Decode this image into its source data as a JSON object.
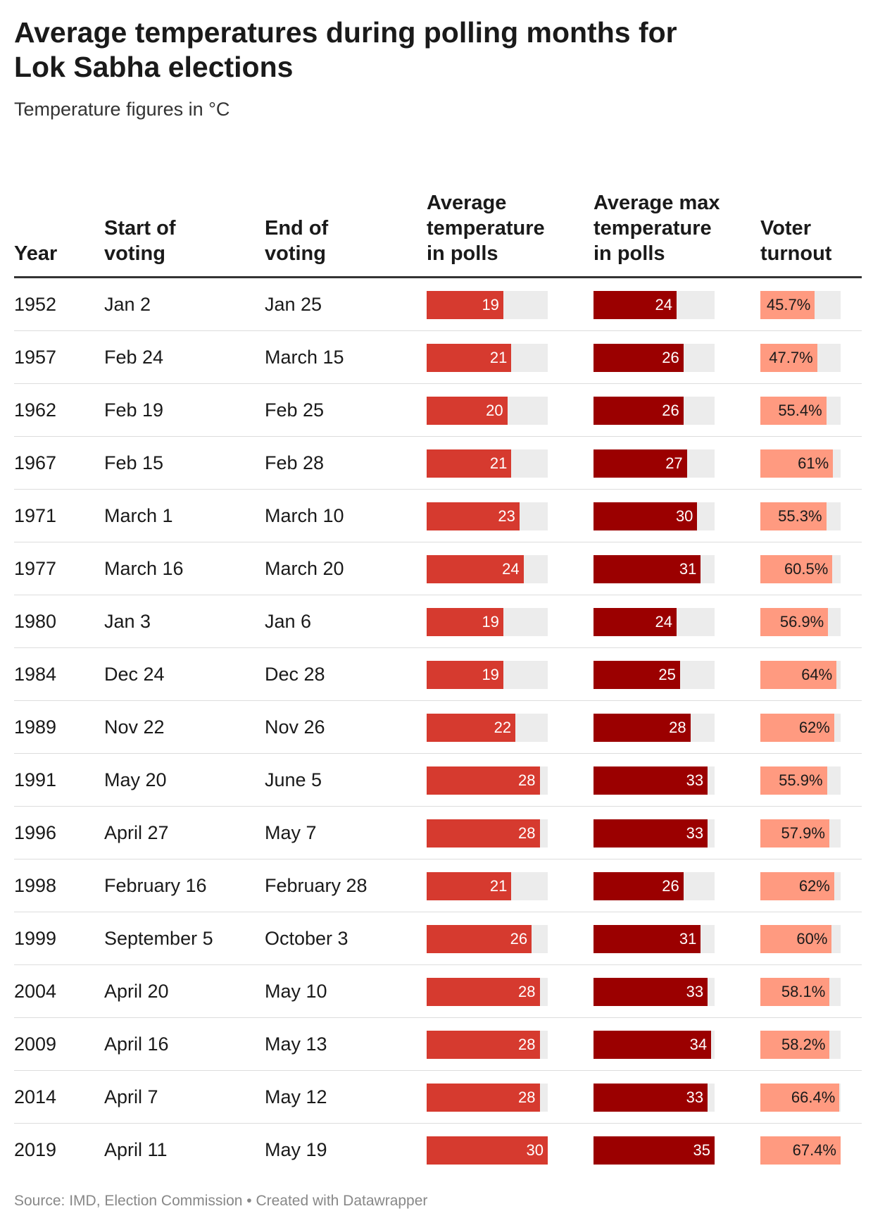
{
  "title": "Average temperatures during polling months for Lok Sabha elections",
  "subtitle": "Temperature figures in °C",
  "headers": {
    "year": "Year",
    "start": "Start of voting",
    "end": "End of voting",
    "avg_temp": "Average temperature in polls",
    "avg_max_temp": "Average max temperature in polls",
    "turnout": "Voter turnout"
  },
  "source": "Source: IMD, Election Commission • Created with Datawrapper",
  "colors": {
    "avg_temp_bar": "#d63a2f",
    "avg_max_temp_bar": "#9b0000",
    "turnout_bar": "#ff9a80",
    "track": "#ececec"
  },
  "chart_data": {
    "type": "table",
    "scales": {
      "avg_temp_max": 30,
      "avg_max_temp_max": 35,
      "turnout_max": 67.4
    },
    "columns": [
      "Year",
      "Start of voting",
      "End of voting",
      "Average temperature in polls",
      "Average max temperature in polls",
      "Voter turnout"
    ],
    "rows": [
      {
        "year": "1952",
        "start": "Jan 2",
        "end": "Jan 25",
        "avg_temp": 19,
        "avg_max_temp": 24,
        "turnout": 45.7,
        "turnout_label": "45.7%"
      },
      {
        "year": "1957",
        "start": "Feb 24",
        "end": "March 15",
        "avg_temp": 21,
        "avg_max_temp": 26,
        "turnout": 47.7,
        "turnout_label": "47.7%"
      },
      {
        "year": "1962",
        "start": "Feb 19",
        "end": "Feb 25",
        "avg_temp": 20,
        "avg_max_temp": 26,
        "turnout": 55.4,
        "turnout_label": "55.4%"
      },
      {
        "year": "1967",
        "start": "Feb 15",
        "end": "Feb 28",
        "avg_temp": 21,
        "avg_max_temp": 27,
        "turnout": 61,
        "turnout_label": "61%"
      },
      {
        "year": "1971",
        "start": "March 1",
        "end": "March 10",
        "avg_temp": 23,
        "avg_max_temp": 30,
        "turnout": 55.3,
        "turnout_label": "55.3%"
      },
      {
        "year": "1977",
        "start": "March 16",
        "end": "March 20",
        "avg_temp": 24,
        "avg_max_temp": 31,
        "turnout": 60.5,
        "turnout_label": "60.5%"
      },
      {
        "year": "1980",
        "start": "Jan 3",
        "end": "Jan 6",
        "avg_temp": 19,
        "avg_max_temp": 24,
        "turnout": 56.9,
        "turnout_label": "56.9%"
      },
      {
        "year": "1984",
        "start": "Dec 24",
        "end": "Dec 28",
        "avg_temp": 19,
        "avg_max_temp": 25,
        "turnout": 64,
        "turnout_label": "64%"
      },
      {
        "year": "1989",
        "start": "Nov 22",
        "end": "Nov 26",
        "avg_temp": 22,
        "avg_max_temp": 28,
        "turnout": 62,
        "turnout_label": "62%"
      },
      {
        "year": "1991",
        "start": "May 20",
        "end": "June 5",
        "avg_temp": 28,
        "avg_max_temp": 33,
        "turnout": 55.9,
        "turnout_label": "55.9%"
      },
      {
        "year": "1996",
        "start": "April 27",
        "end": "May 7",
        "avg_temp": 28,
        "avg_max_temp": 33,
        "turnout": 57.9,
        "turnout_label": "57.9%"
      },
      {
        "year": "1998",
        "start": "February 16",
        "end": "February 28",
        "avg_temp": 21,
        "avg_max_temp": 26,
        "turnout": 62,
        "turnout_label": "62%"
      },
      {
        "year": "1999",
        "start": "September 5",
        "end": "October 3",
        "avg_temp": 26,
        "avg_max_temp": 31,
        "turnout": 60,
        "turnout_label": "60%"
      },
      {
        "year": "2004",
        "start": "April 20",
        "end": "May 10",
        "avg_temp": 28,
        "avg_max_temp": 33,
        "turnout": 58.1,
        "turnout_label": "58.1%"
      },
      {
        "year": "2009",
        "start": "April 16",
        "end": "May 13",
        "avg_temp": 28,
        "avg_max_temp": 34,
        "turnout": 58.2,
        "turnout_label": "58.2%"
      },
      {
        "year": "2014",
        "start": "April 7",
        "end": "May 12",
        "avg_temp": 28,
        "avg_max_temp": 33,
        "turnout": 66.4,
        "turnout_label": "66.4%"
      },
      {
        "year": "2019",
        "start": "April 11",
        "end": "May 19",
        "avg_temp": 30,
        "avg_max_temp": 35,
        "turnout": 67.4,
        "turnout_label": "67.4%"
      }
    ]
  }
}
